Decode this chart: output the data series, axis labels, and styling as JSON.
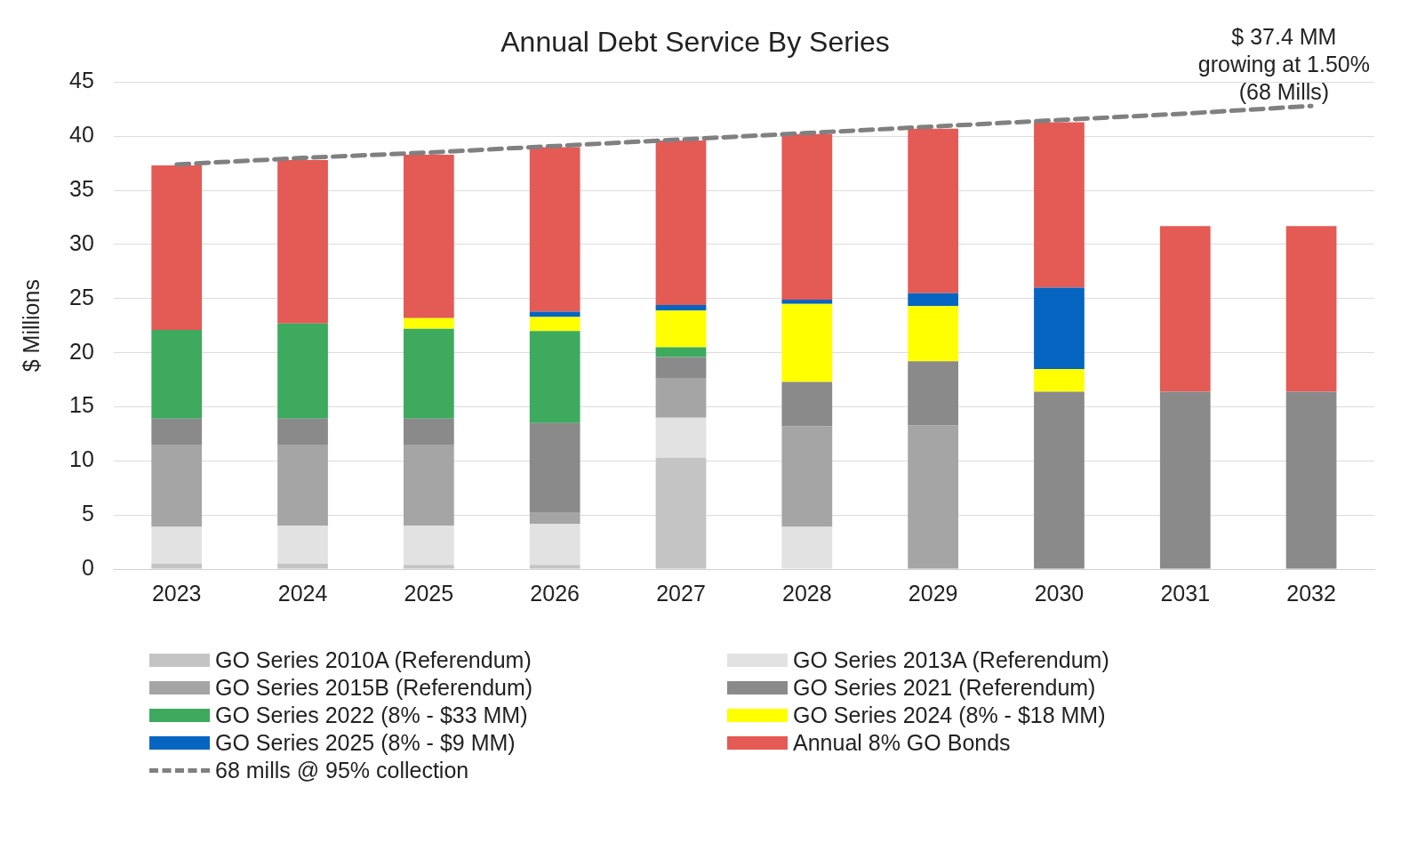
{
  "chart_data": {
    "type": "bar",
    "title": "Annual Debt Service By Series",
    "ylabel": "$ Millions",
    "stacked": true,
    "categories": [
      "2023",
      "2024",
      "2025",
      "2026",
      "2027",
      "2028",
      "2029",
      "2030",
      "2031",
      "2032"
    ],
    "series": [
      {
        "name": "GO Series 2010A (Referendum)",
        "color": "#c4c4c4",
        "values": [
          0.5,
          0.5,
          0.4,
          0.4,
          10.3,
          null,
          null,
          null,
          null,
          null
        ]
      },
      {
        "name": "GO Series 2013A (Referendum)",
        "color": "#e2e2e2",
        "values": [
          3.4,
          3.5,
          3.6,
          3.8,
          3.7,
          3.9,
          null,
          null,
          null,
          null
        ]
      },
      {
        "name": "GO Series 2015B (Referendum)",
        "color": "#a5a5a5",
        "values": [
          7.6,
          7.5,
          7.5,
          1.0,
          3.6,
          9.3,
          13.3,
          null,
          null,
          null
        ]
      },
      {
        "name": "GO Series 2021 (Referendum)",
        "color": "#8a8a8a",
        "values": [
          2.4,
          2.4,
          2.4,
          8.3,
          2.0,
          4.1,
          5.9,
          16.4,
          16.4,
          16.4
        ]
      },
      {
        "name": "GO Series 2022 (8% - $33 MM)",
        "color": "#3daa5e",
        "values": [
          8.2,
          8.8,
          8.3,
          8.5,
          0.9,
          null,
          null,
          null,
          null,
          null
        ]
      },
      {
        "name": "GO Series 2024 (8% - $18 MM)",
        "color": "#ffff00",
        "values": [
          null,
          null,
          1.0,
          1.3,
          3.4,
          7.2,
          5.1,
          2.1,
          null,
          null
        ]
      },
      {
        "name": "GO Series 2025 (8% - $9 MM)",
        "color": "#0565c0",
        "values": [
          null,
          null,
          null,
          0.5,
          0.5,
          0.4,
          1.2,
          7.5,
          null,
          null
        ]
      },
      {
        "name": "Annual 8% GO Bonds",
        "color": "#e45a55",
        "values": [
          15.2,
          15.1,
          15.1,
          15.2,
          15.2,
          15.3,
          15.2,
          15.3,
          15.3,
          15.3
        ]
      },
      {
        "name": "68 mills @ 95% collection",
        "type": "line",
        "color": "#808080",
        "line_style": "dashed",
        "marker": "none",
        "values": [
          37.4,
          38.0,
          38.5,
          39.1,
          39.7,
          40.3,
          40.9,
          41.5,
          42.1,
          42.8
        ]
      }
    ],
    "ylim": [
      0,
      45
    ],
    "yticks": [
      0,
      5,
      10,
      15,
      20,
      25,
      30,
      35,
      40,
      45
    ],
    "grid": "y",
    "legend": "bottom",
    "annotations": [
      "$ 37.4 MM\ngrowing at 1.50%\n(68 Mills)"
    ]
  }
}
